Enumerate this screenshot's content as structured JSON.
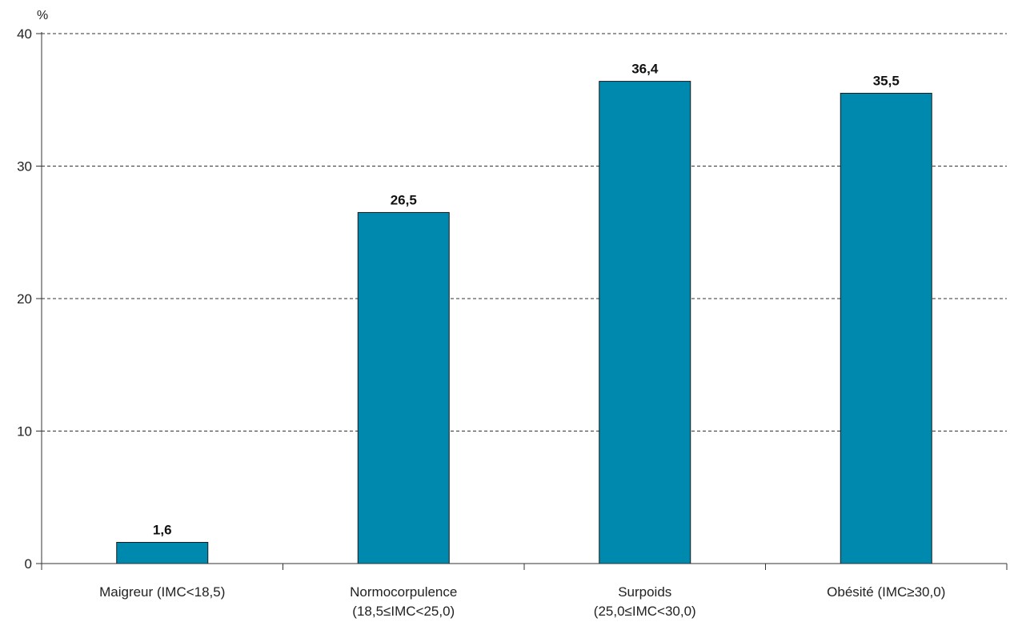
{
  "chart_data": {
    "type": "bar",
    "y_unit": "%",
    "categories": [
      [
        "Maigreur (IMC<18,5)"
      ],
      [
        "Normocorpulence",
        "(18,5≤IMC<25,0)"
      ],
      [
        "Surpoids",
        "(25,0≤IMC<30,0)"
      ],
      [
        "Obésité (IMC≥30,0)"
      ]
    ],
    "values": [
      1.6,
      26.5,
      36.4,
      35.5
    ],
    "value_labels": [
      "1,6",
      "26,5",
      "36,4",
      "35,5"
    ],
    "yticks": [
      0,
      10,
      20,
      30,
      40
    ],
    "ylim": [
      0,
      40
    ],
    "grid": "horizontal-dashed",
    "bar_color": "#0089AE"
  }
}
